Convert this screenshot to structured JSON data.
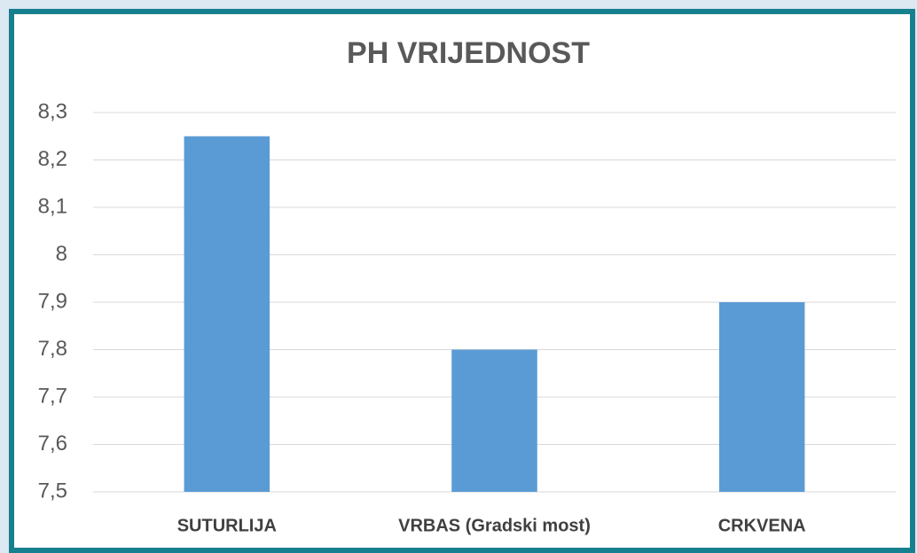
{
  "chart_data": {
    "type": "bar",
    "title": "PH VRIJEDNOST",
    "categories": [
      "SUTURLIJA",
      "VRBAS (Gradski most)",
      "CRKVENA"
    ],
    "values": [
      8.25,
      7.8,
      7.9
    ],
    "color": "#5b9bd5",
    "ylim": [
      7.5,
      8.3
    ],
    "yticks": [
      {
        "value": 7.5,
        "label": "7,5"
      },
      {
        "value": 7.6,
        "label": "7,6"
      },
      {
        "value": 7.7,
        "label": "7,7"
      },
      {
        "value": 7.8,
        "label": "7,8"
      },
      {
        "value": 7.9,
        "label": "7,9"
      },
      8,
      {
        "value": 8.1,
        "label": "8,1"
      },
      {
        "value": 8.2,
        "label": "8,2"
      },
      {
        "value": 8.3,
        "label": "8,3"
      }
    ],
    "grid": true
  }
}
